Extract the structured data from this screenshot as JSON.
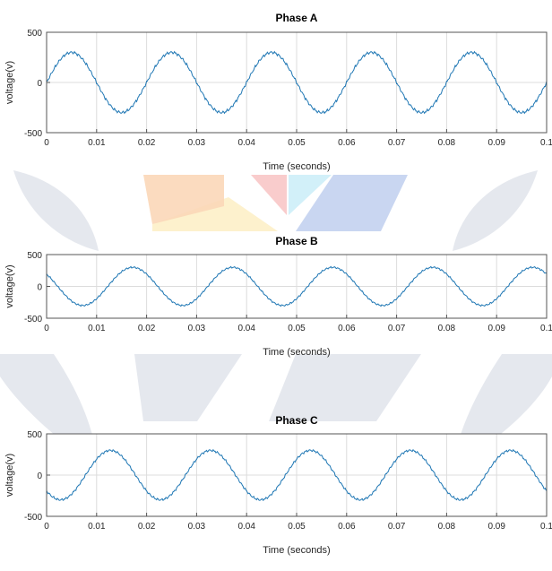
{
  "watermark_colors": {
    "gray": "#e2e6ec",
    "yellow": "#fdf0c8",
    "orange": "#fbd7b8",
    "pink": "#f8c6c6",
    "cyan": "#cdeef8",
    "blue": "#c3d2f0"
  },
  "trace_color": "#1f77b4",
  "chart_data": [
    {
      "type": "line",
      "title": "Phase A",
      "xlabel": "Time (seconds)",
      "ylabel": "voltage(v)",
      "xlim": [
        0,
        0.1
      ],
      "ylim": [
        -500,
        500
      ],
      "xticks": [
        0,
        0.01,
        0.02,
        0.03,
        0.04,
        0.05,
        0.06,
        0.07,
        0.08,
        0.09,
        0.1
      ],
      "xticklabels": [
        "0",
        "0.01",
        "0.02",
        "0.03",
        "0.04",
        "0.05",
        "0.06",
        "0.07",
        "0.08",
        "0.09",
        "0.1"
      ],
      "yticks": [
        -500,
        0,
        500
      ],
      "yticklabels": [
        "-500",
        "0",
        "500"
      ],
      "grid": true,
      "signal": {
        "amplitude": 300,
        "frequency_hz": 50,
        "phase_deg": 0
      }
    },
    {
      "type": "line",
      "title": "Phase B",
      "xlabel": "Time (seconds)",
      "ylabel": "voltage(v)",
      "xlim": [
        0,
        0.1
      ],
      "ylim": [
        -500,
        500
      ],
      "xticks": [
        0,
        0.01,
        0.02,
        0.03,
        0.04,
        0.05,
        0.06,
        0.07,
        0.08,
        0.09,
        0.1
      ],
      "xticklabels": [
        "0",
        "0.01",
        "0.02",
        "0.03",
        "0.04",
        "0.05",
        "0.06",
        "0.07",
        "0.08",
        "0.09",
        "0.1"
      ],
      "yticks": [
        -500,
        0,
        500
      ],
      "yticklabels": [
        "-500",
        "0",
        "500"
      ],
      "grid": true,
      "signal": {
        "amplitude": 300,
        "frequency_hz": 50,
        "phase_deg": 140
      }
    },
    {
      "type": "line",
      "title": "Phase C",
      "xlabel": "Time (seconds)",
      "ylabel": "voltage(v)",
      "xlim": [
        0,
        0.1
      ],
      "ylim": [
        -500,
        500
      ],
      "xticks": [
        0,
        0.01,
        0.02,
        0.03,
        0.04,
        0.05,
        0.06,
        0.07,
        0.08,
        0.09,
        0.1
      ],
      "xticklabels": [
        "0",
        "0.01",
        "0.02",
        "0.03",
        "0.04",
        "0.05",
        "0.06",
        "0.07",
        "0.08",
        "0.09",
        "0.1"
      ],
      "yticks": [
        -500,
        0,
        500
      ],
      "yticklabels": [
        "-500",
        "0",
        "500"
      ],
      "grid": true,
      "signal": {
        "amplitude": 300,
        "frequency_hz": 50,
        "phase_deg": -140
      }
    }
  ]
}
